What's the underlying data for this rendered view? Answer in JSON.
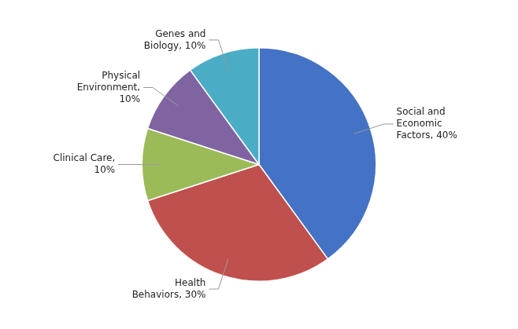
{
  "chart_data": {
    "type": "pie",
    "categories": [
      "Social and\nEconomic\nFactors, 40%",
      "Health\nBehaviors, 30%",
      "Clinical Care,\n10%",
      "Physical\nEnvironment,\n10%",
      "Genes and\nBiology, 10%"
    ],
    "values": [
      40,
      30,
      10,
      10,
      10
    ],
    "colors": [
      "#4472C4",
      "#C0504D",
      "#9BBB59",
      "#8064A2",
      "#4BACC6"
    ]
  }
}
